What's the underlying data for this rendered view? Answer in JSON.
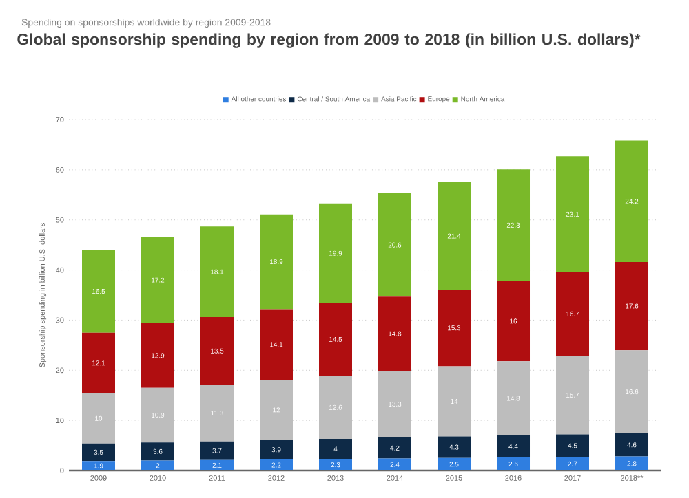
{
  "chart_data": {
    "type": "bar",
    "stacked": true,
    "subtitle": "Spending on sponsorships worldwide by region 2009-2018",
    "title": "Global sponsorship spending by region from 2009 to 2018 (in billion U.S. dollars)*",
    "ylabel": "Sponsorship spending in billion U.S. dollars",
    "categories": [
      "2009",
      "2010",
      "2011",
      "2012",
      "2013",
      "2014",
      "2015",
      "2016",
      "2017",
      "2018**"
    ],
    "series": [
      {
        "name": "All other countries",
        "color": "#2f7ee0",
        "values": [
          1.9,
          2,
          2.1,
          2.2,
          2.3,
          2.4,
          2.5,
          2.6,
          2.7,
          2.8
        ]
      },
      {
        "name": "Central / South America",
        "color": "#0e2a47",
        "values": [
          3.5,
          3.6,
          3.7,
          3.9,
          4,
          4.2,
          4.3,
          4.4,
          4.5,
          4.6
        ]
      },
      {
        "name": "Asia Pacific",
        "color": "#bdbdbd",
        "values": [
          10,
          10.9,
          11.3,
          12,
          12.6,
          13.3,
          14,
          14.8,
          15.7,
          16.6
        ]
      },
      {
        "name": "Europe",
        "color": "#b00e10",
        "values": [
          12.1,
          12.9,
          13.5,
          14.1,
          14.5,
          14.8,
          15.3,
          16,
          16.7,
          17.6
        ]
      },
      {
        "name": "North America",
        "color": "#7ab929",
        "values": [
          16.5,
          17.2,
          18.1,
          18.9,
          19.9,
          20.6,
          21.4,
          22.3,
          23.1,
          24.2
        ]
      }
    ],
    "ylim": [
      0,
      70
    ],
    "yticks": [
      0,
      10,
      20,
      30,
      40,
      50,
      60,
      70
    ],
    "grid": "y",
    "legend": "top",
    "data_labels": true
  }
}
